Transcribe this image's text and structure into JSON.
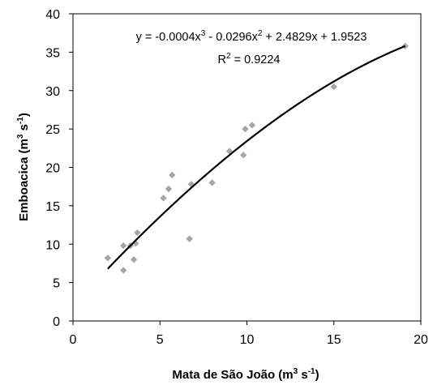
{
  "chart_data": {
    "type": "scatter",
    "x_axis": {
      "label_main": "Mata de São João (m",
      "label_sup1": "3",
      "label_mid": " s",
      "label_sup2": "-1",
      "label_end": ")",
      "min": 0,
      "max": 20,
      "ticks": [
        0,
        5,
        10,
        15,
        20
      ]
    },
    "y_axis": {
      "label_main": "Emboacica (m",
      "label_sup1": "3",
      "label_mid": " s",
      "label_sup2": "-1",
      "label_end": ")",
      "min": 0,
      "max": 40,
      "ticks": [
        0,
        5,
        10,
        15,
        20,
        25,
        30,
        35,
        40
      ]
    },
    "grid": false,
    "legend": "none",
    "points": [
      {
        "x": 2.0,
        "y": 8.2
      },
      {
        "x": 2.9,
        "y": 9.8
      },
      {
        "x": 2.9,
        "y": 6.6
      },
      {
        "x": 3.3,
        "y": 9.8
      },
      {
        "x": 3.5,
        "y": 8.0
      },
      {
        "x": 3.6,
        "y": 10.1
      },
      {
        "x": 3.7,
        "y": 11.5
      },
      {
        "x": 5.2,
        "y": 16.0
      },
      {
        "x": 5.5,
        "y": 17.2
      },
      {
        "x": 5.7,
        "y": 19.0
      },
      {
        "x": 6.7,
        "y": 10.7
      },
      {
        "x": 6.8,
        "y": 17.8
      },
      {
        "x": 8.0,
        "y": 18.0
      },
      {
        "x": 9.0,
        "y": 22.1
      },
      {
        "x": 9.8,
        "y": 21.6
      },
      {
        "x": 9.9,
        "y": 25.0
      },
      {
        "x": 10.3,
        "y": 25.5
      },
      {
        "x": 15.0,
        "y": 30.5
      },
      {
        "x": 19.1,
        "y": 35.8
      }
    ],
    "trendline": {
      "type": "polynomial",
      "coefficients": [
        -0.0004,
        -0.0296,
        2.4829,
        1.9523
      ],
      "x_range": [
        2.0,
        19.1
      ],
      "equation": {
        "p1": "y = -0.0004x",
        "s1": "3",
        "p2": " - 0.0296x",
        "s2": "2",
        "p3": " + 2.4829x + 1.9523"
      },
      "r2": {
        "p1": "R",
        "s1": "2",
        "p2": " = 0.9224"
      }
    },
    "colors": {
      "points": "#a6a6a6",
      "trendline": "#000000",
      "axis": "#000000"
    }
  }
}
